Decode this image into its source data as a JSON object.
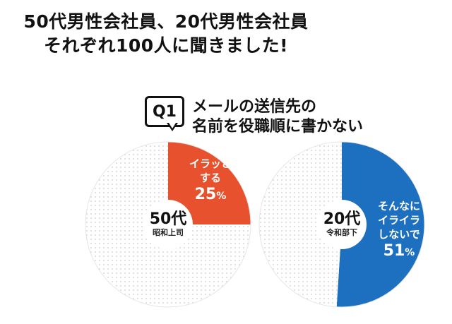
{
  "headline": {
    "line1": "50代男性会社員、20代男性会社員",
    "line2": "それぞれ100人に聞きました!"
  },
  "question": {
    "badge": "Q1",
    "line1": "メールの送信先の",
    "line2": "名前を役職順に書かない"
  },
  "colors": {
    "orange": "#e8512d",
    "blue": "#1d6fc0",
    "rest": "#ffffff",
    "dots": "#c9c9c9"
  },
  "chart_data": [
    {
      "type": "pie",
      "group": "50代",
      "group_sub": "昭和上司",
      "slices": [
        {
          "label": "イラッとする",
          "value": 25,
          "color": "#e8512d"
        },
        {
          "label": "",
          "value": 75,
          "color": "#ffffff"
        }
      ],
      "slice_label_lines": [
        "イラッと",
        "する"
      ],
      "pct_value": "25",
      "pct_unit": "%"
    },
    {
      "type": "pie",
      "group": "20代",
      "group_sub": "令和部下",
      "slices": [
        {
          "label": "そんなにイライラしないで",
          "value": 51,
          "color": "#1d6fc0"
        },
        {
          "label": "",
          "value": 49,
          "color": "#ffffff"
        }
      ],
      "slice_label_lines": [
        "そんなに",
        "イライラ",
        "しないで"
      ],
      "pct_value": "51",
      "pct_unit": "%"
    }
  ]
}
